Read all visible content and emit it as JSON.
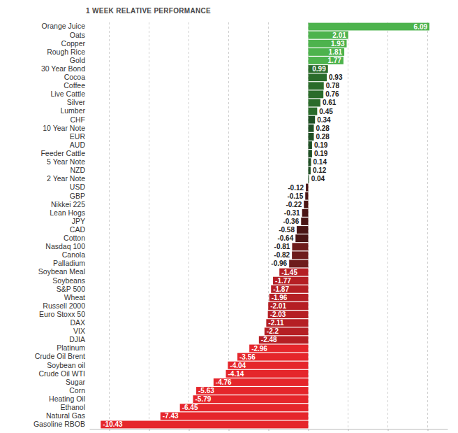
{
  "chart_data": {
    "type": "bar",
    "orientation": "horizontal",
    "title": "1 WEEK RELATIVE PERFORMANCE",
    "categories": [
      "Orange Juice",
      "Oats",
      "Copper",
      "Rough Rice",
      "Gold",
      "30 Year Bond",
      "Cocoa",
      "Coffee",
      "Live Cattle",
      "Silver",
      "Lumber",
      "CHF",
      "10 Year Note",
      "EUR",
      "AUD",
      "Feeder Cattle",
      "5 Year Note",
      "NZD",
      "2 Year Note",
      "USD",
      "GBP",
      "Nikkei 225",
      "Lean Hogs",
      "JPY",
      "CAD",
      "Cotton",
      "Nasdaq 100",
      "Canola",
      "Palladium",
      "Soybean Meal",
      "Soybeans",
      "S&P 500",
      "Wheat",
      "Russell 2000",
      "Euro Stoxx 50",
      "DAX",
      "VIX",
      "DJIA",
      "Platinum",
      "Crude Oil Brent",
      "Soybean oil",
      "Crude Oil WTI",
      "Sugar",
      "Corn",
      "Heating Oil",
      "Ethanol",
      "Natural Gas",
      "Gasoline RBOB"
    ],
    "values": [
      6.09,
      2.01,
      1.93,
      1.81,
      1.77,
      0.99,
      0.93,
      0.78,
      0.76,
      0.61,
      0.45,
      0.34,
      0.28,
      0.28,
      0.19,
      0.19,
      0.14,
      0.12,
      0.04,
      -0.12,
      -0.15,
      -0.22,
      -0.31,
      -0.36,
      -0.58,
      -0.64,
      -0.81,
      -0.82,
      -0.96,
      -1.45,
      -1.77,
      -1.87,
      -1.96,
      -2.01,
      -2.03,
      -2.11,
      -2.2,
      -2.48,
      -2.96,
      -3.56,
      -4.04,
      -4.14,
      -4.76,
      -5.63,
      -5.79,
      -6.45,
      -7.43,
      -10.43
    ],
    "colors": [
      "#4db34d",
      "#4db34d",
      "#4db34d",
      "#4db34d",
      "#4db34d",
      "#2a6b2a",
      "#2a6b2a",
      "#2a6b2a",
      "#2a6b2a",
      "#2a6b2a",
      "#2a6b2a",
      "#1f4f24",
      "#1f4f24",
      "#1f4f24",
      "#1f4f24",
      "#1f4f24",
      "#1f4f24",
      "#1f4f24",
      "#1f4f24",
      "#4a1515",
      "#4a1515",
      "#4a1515",
      "#4a1515",
      "#4a1515",
      "#4a1515",
      "#4a1515",
      "#6e1c1c",
      "#6e1c1c",
      "#6e1c1c",
      "#b51f24",
      "#b51f24",
      "#b51f24",
      "#b51f24",
      "#b51f24",
      "#b51f24",
      "#b51f24",
      "#b51f24",
      "#b51f24",
      "#e5262b",
      "#e5262b",
      "#e5262b",
      "#e5262b",
      "#e5262b",
      "#e5262b",
      "#e5262b",
      "#e5262b",
      "#e5262b",
      "#e5262b"
    ],
    "xlim": [
      -11,
      7
    ],
    "xticks": [
      -10,
      -8,
      -6,
      -4,
      -2,
      0,
      2,
      4,
      6
    ],
    "grid": true,
    "data_labels": true,
    "tick_labels": "y"
  }
}
